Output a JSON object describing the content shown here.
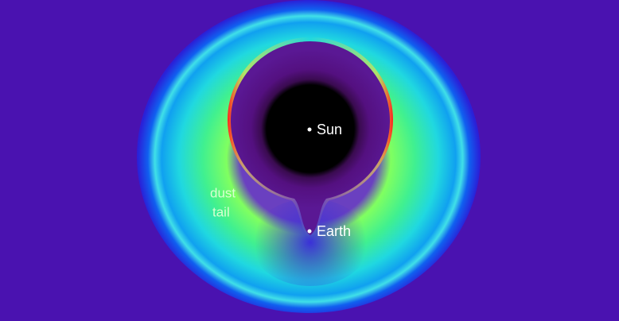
{
  "labels": {
    "sun": "Sun",
    "earth": "Earth",
    "dust_tail": [
      "dust",
      "tail"
    ]
  }
}
